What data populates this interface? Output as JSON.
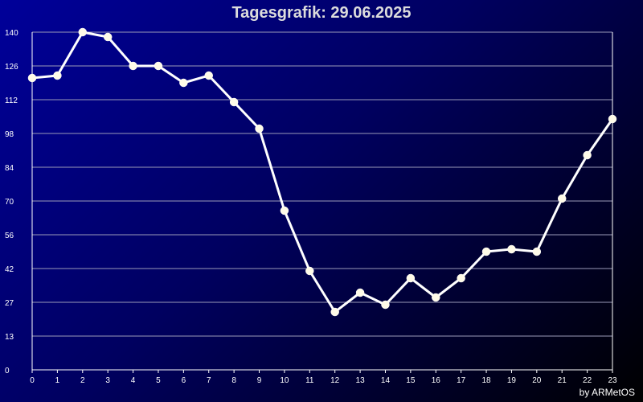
{
  "chart_data": {
    "type": "line",
    "title": "Tagesgrafik: 29.06.2025",
    "xlabel": "",
    "ylabel": "",
    "x": [
      0,
      1,
      2,
      3,
      4,
      5,
      6,
      7,
      8,
      9,
      10,
      11,
      12,
      13,
      14,
      15,
      16,
      17,
      18,
      19,
      20,
      21,
      22,
      23
    ],
    "series": [
      {
        "values": [
          121,
          122,
          140,
          138,
          126,
          126,
          119,
          122,
          111,
          100,
          66,
          41,
          24,
          32,
          27,
          38,
          30,
          38,
          49,
          50,
          49,
          71,
          89,
          104
        ]
      }
    ],
    "xlim": [
      0,
      23
    ],
    "ylim": [
      0,
      140
    ],
    "yticks": [
      "0",
      "13",
      "27",
      "42",
      "56",
      "70",
      "84",
      "98",
      "112",
      "126",
      "140"
    ],
    "xticks": [
      "0",
      "1",
      "2",
      "3",
      "4",
      "5",
      "6",
      "7",
      "8",
      "9",
      "10",
      "11",
      "12",
      "13",
      "14",
      "15",
      "16",
      "17",
      "18",
      "19",
      "20",
      "21",
      "22",
      "23"
    ],
    "grid": true,
    "colors": {
      "line": "#ffffff",
      "marker": "#fffbe8",
      "grid": "#9a9ab8",
      "axis": "#ffffff"
    }
  },
  "credit": "by ARMetOS"
}
